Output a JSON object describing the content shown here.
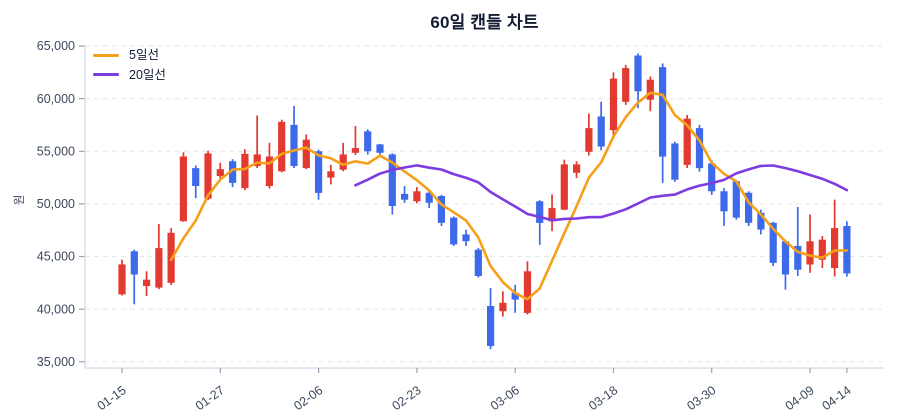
{
  "title": "60일 캔들 차트",
  "y_axis": {
    "label": "원",
    "ticks": [
      {
        "label": "65,000",
        "value": 65000
      },
      {
        "label": "60,000",
        "value": 60000
      },
      {
        "label": "55,000",
        "value": 55000
      },
      {
        "label": "50,000",
        "value": 50000
      },
      {
        "label": "45,000",
        "value": 45000
      },
      {
        "label": "40,000",
        "value": 40000
      },
      {
        "label": "35,000",
        "value": 35000
      }
    ]
  },
  "x_axis": {
    "ticks": [
      {
        "label": "01-15",
        "index": 0
      },
      {
        "label": "01-27",
        "index": 8
      },
      {
        "label": "02-06",
        "index": 16
      },
      {
        "label": "02-23",
        "index": 24
      },
      {
        "label": "03-06",
        "index": 32
      },
      {
        "label": "03-18",
        "index": 40
      },
      {
        "label": "03-30",
        "index": 48
      },
      {
        "label": "04-09",
        "index": 56
      },
      {
        "label": "04-14",
        "index": 59
      }
    ]
  },
  "legend": [
    {
      "label": "5일선",
      "color": "#f6a01a"
    },
    {
      "label": "20일선",
      "color": "#7d3be0"
    }
  ],
  "colors": {
    "up_candle": "#e23a30",
    "down_candle": "#3d6aeb",
    "ma5": "#f6a01a",
    "ma20": "#7d3be0",
    "grid": "#e7e7e7",
    "axis": "#d3d9e3",
    "tick_mark": "#9aa3b5",
    "tick_text": "#3b475c",
    "title_text": "#131c33"
  },
  "chart_data": {
    "type": "candlestick",
    "title": "60일 캔들 차트",
    "unit": "원",
    "ylim": [
      35000,
      65000
    ],
    "grid": "dashed-horizontal",
    "legend_position": "top-left",
    "series": [
      {
        "name": "5일선",
        "type": "moving_average",
        "window": 5
      },
      {
        "name": "20일선",
        "type": "moving_average",
        "window": 20
      }
    ],
    "candles_order": "open,high,low,close (Korean convention: red=up, blue=down)",
    "candles": [
      [
        41400,
        44700,
        41300,
        44250
      ],
      [
        45500,
        45650,
        40450,
        43300
      ],
      [
        42200,
        43600,
        41250,
        42800
      ],
      [
        42050,
        48100,
        41900,
        45800
      ],
      [
        42500,
        47700,
        42300,
        47250
      ],
      [
        48350,
        54900,
        48300,
        54500
      ],
      [
        53400,
        53650,
        50550,
        51700
      ],
      [
        50500,
        55050,
        50350,
        54800
      ],
      [
        52650,
        53900,
        52150,
        53300
      ],
      [
        54050,
        54250,
        51600,
        52000
      ],
      [
        51500,
        55200,
        51300,
        54750
      ],
      [
        53600,
        58400,
        53400,
        54700
      ],
      [
        51700,
        55800,
        51450,
        54500
      ],
      [
        53100,
        58000,
        53000,
        57800
      ],
      [
        57500,
        59300,
        53400,
        53600
      ],
      [
        53400,
        56600,
        53300,
        56100
      ],
      [
        55000,
        55150,
        50400,
        51050
      ],
      [
        52500,
        53700,
        51850,
        53100
      ],
      [
        53250,
        55800,
        53100,
        54700
      ],
      [
        54850,
        57400,
        54650,
        55300
      ],
      [
        56900,
        57100,
        54700,
        55000
      ],
      [
        55650,
        55700,
        54500,
        54850
      ],
      [
        54700,
        54800,
        49000,
        49800
      ],
      [
        50950,
        51700,
        50100,
        50400
      ],
      [
        50250,
        51600,
        50050,
        51200
      ],
      [
        51050,
        51300,
        49600,
        50100
      ],
      [
        50750,
        50850,
        47900,
        48200
      ],
      [
        48700,
        48800,
        46000,
        46150
      ],
      [
        47100,
        47550,
        46000,
        46450
      ],
      [
        45650,
        45800,
        43000,
        43150
      ],
      [
        40300,
        42000,
        36200,
        36500
      ],
      [
        39800,
        41700,
        39300,
        40600
      ],
      [
        41550,
        42300,
        39650,
        40900
      ],
      [
        39650,
        44550,
        39500,
        43600
      ],
      [
        50250,
        50350,
        46100,
        48200
      ],
      [
        48350,
        50900,
        47400,
        49600
      ],
      [
        49450,
        54200,
        49400,
        53750
      ],
      [
        52950,
        54050,
        52450,
        53750
      ],
      [
        54950,
        58600,
        54600,
        57200
      ],
      [
        58300,
        59700,
        55100,
        55450
      ],
      [
        57000,
        62500,
        56200,
        61900
      ],
      [
        59700,
        63200,
        59400,
        62900
      ],
      [
        64100,
        64300,
        59100,
        60700
      ],
      [
        59900,
        62100,
        58800,
        61800
      ],
      [
        63000,
        63350,
        52000,
        54500
      ],
      [
        55750,
        55900,
        52100,
        52300
      ],
      [
        53700,
        58450,
        53400,
        58100
      ],
      [
        57200,
        57500,
        53050,
        53400
      ],
      [
        53850,
        54150,
        50850,
        51200
      ],
      [
        51200,
        51500,
        47900,
        49300
      ],
      [
        52150,
        52250,
        48500,
        48700
      ],
      [
        51050,
        51200,
        47900,
        48200
      ],
      [
        49150,
        49450,
        47100,
        47550
      ],
      [
        48200,
        48300,
        44100,
        44400
      ],
      [
        46450,
        46600,
        41850,
        43300
      ],
      [
        46000,
        49700,
        43150,
        43750
      ],
      [
        44250,
        49000,
        43450,
        46450
      ],
      [
        44700,
        46950,
        43900,
        46600
      ],
      [
        43900,
        50400,
        43100,
        47700
      ],
      [
        47900,
        48350,
        43100,
        43400
      ]
    ]
  }
}
